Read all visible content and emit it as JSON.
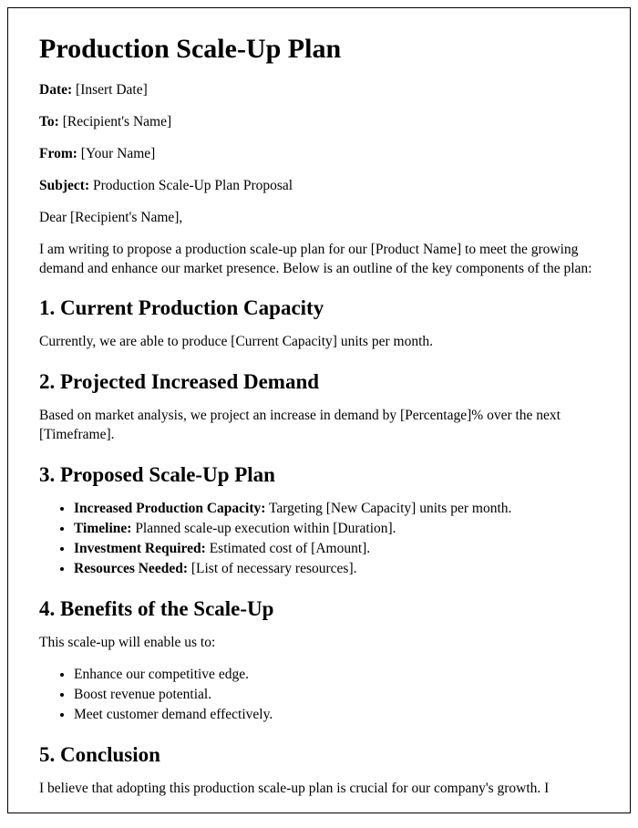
{
  "title": "Production Scale-Up Plan",
  "meta": {
    "date_label": "Date:",
    "date_value": " [Insert Date]",
    "to_label": "To:",
    "to_value": " [Recipient's Name]",
    "from_label": "From:",
    "from_value": " [Your Name]",
    "subject_label": "Subject:",
    "subject_value": " Production Scale-Up Plan Proposal"
  },
  "salutation": "Dear [Recipient's Name],",
  "intro": "I am writing to propose a production scale-up plan for our [Product Name] to meet the growing demand and enhance our market presence. Below is an outline of the key components of the plan:",
  "s1": {
    "heading": "1. Current Production Capacity",
    "body": "Currently, we are able to produce [Current Capacity] units per month."
  },
  "s2": {
    "heading": "2. Projected Increased Demand",
    "body": "Based on market analysis, we project an increase in demand by [Percentage]% over the next [Timeframe]."
  },
  "s3": {
    "heading": "3. Proposed Scale-Up Plan",
    "items": {
      "a_label": "Increased Production Capacity:",
      "a_value": " Targeting [New Capacity] units per month.",
      "b_label": "Timeline:",
      "b_value": " Planned scale-up execution within [Duration].",
      "c_label": "Investment Required:",
      "c_value": " Estimated cost of [Amount].",
      "d_label": "Resources Needed:",
      "d_value": " [List of necessary resources]."
    }
  },
  "s4": {
    "heading": "4. Benefits of the Scale-Up",
    "lead": "This scale-up will enable us to:",
    "items": {
      "a": "Enhance our competitive edge.",
      "b": "Boost revenue potential.",
      "c": "Meet customer demand effectively."
    }
  },
  "s5": {
    "heading": "5. Conclusion",
    "body": "I believe that adopting this production scale-up plan is crucial for our company's growth. I"
  }
}
